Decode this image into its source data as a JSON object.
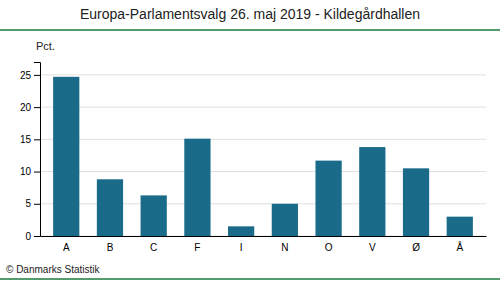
{
  "chart_data": {
    "type": "bar",
    "title": "Europa-Parlamentsvalg 26. maj 2019 - Kildegårdhallen",
    "ylabel": "Pct.",
    "annotations": [
      "© Danmarks Statistik"
    ],
    "categories": [
      "A",
      "B",
      "C",
      "F",
      "I",
      "N",
      "O",
      "V",
      "Ø",
      "Å"
    ],
    "values": [
      24.7,
      8.8,
      6.3,
      15.1,
      1.5,
      5.0,
      11.7,
      13.8,
      10.5,
      3.0
    ],
    "color": "#1a6b8a",
    "ylim": [
      0,
      27
    ],
    "yticks": [
      0,
      5,
      10,
      15,
      20,
      25
    ],
    "grid": true
  }
}
